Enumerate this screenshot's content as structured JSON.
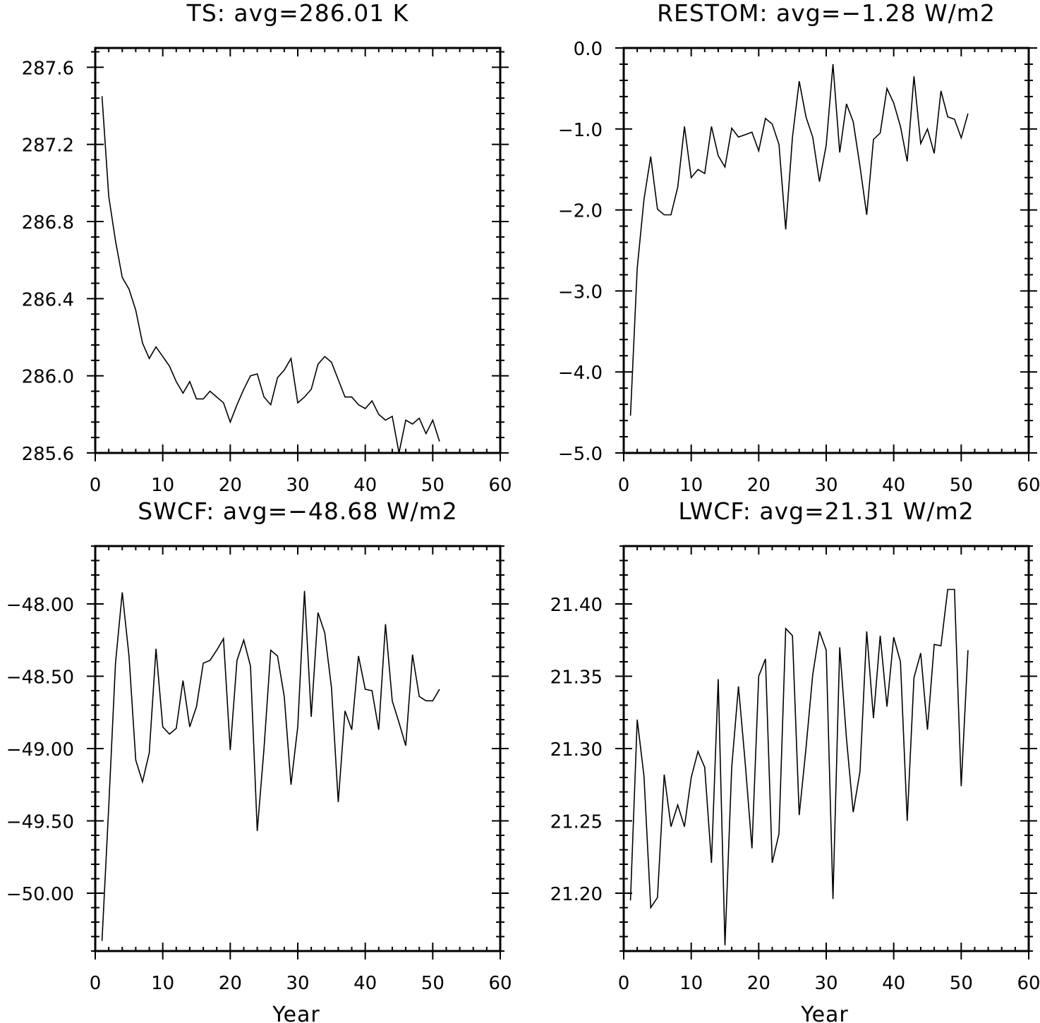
{
  "chart_data": [
    {
      "type": "line",
      "title": "TS: avg=286.01 K",
      "xlabel": "",
      "ylabel": "",
      "xlim": [
        0,
        60
      ],
      "ylim": [
        285.6,
        287.7
      ],
      "xticks": [
        0,
        10,
        20,
        30,
        40,
        50,
        60
      ],
      "xtick_labels": [
        "0",
        "10",
        "20",
        "30",
        "40",
        "50",
        "60"
      ],
      "yticks": [
        285.6,
        286.0,
        286.4,
        286.8,
        287.2,
        287.6
      ],
      "ytick_labels": [
        "285.6",
        "286.0",
        "286.4",
        "286.8",
        "287.2",
        "287.6"
      ],
      "x": [
        1,
        2,
        3,
        4,
        5,
        6,
        7,
        8,
        9,
        10,
        11,
        12,
        13,
        14,
        15,
        16,
        17,
        18,
        19,
        20,
        21,
        22,
        23,
        24,
        25,
        26,
        27,
        28,
        29,
        30,
        31,
        32,
        33,
        34,
        35,
        36,
        37,
        38,
        39,
        40,
        41,
        42,
        43,
        44,
        45,
        46,
        47,
        48,
        49,
        50,
        51
      ],
      "series": [
        {
          "values": [
            287.45,
            286.93,
            286.7,
            286.51,
            286.45,
            286.34,
            286.17,
            286.09,
            286.15,
            286.1,
            286.05,
            285.97,
            285.91,
            285.97,
            285.88,
            285.88,
            285.92,
            285.89,
            285.86,
            285.76,
            285.85,
            285.93,
            286.0,
            286.01,
            285.89,
            285.85,
            285.99,
            286.03,
            286.09,
            285.86,
            285.89,
            285.93,
            286.06,
            286.1,
            286.07,
            285.98,
            285.89,
            285.89,
            285.85,
            285.83,
            285.87,
            285.8,
            285.77,
            285.79,
            285.6,
            285.77,
            285.75,
            285.78,
            285.7,
            285.77,
            285.66
          ]
        }
      ]
    },
    {
      "type": "line",
      "title": "RESTOM: avg=−1.28 W/m2",
      "xlabel": "",
      "ylabel": "",
      "xlim": [
        0,
        60
      ],
      "ylim": [
        -5.0,
        0.0
      ],
      "xticks": [
        0,
        10,
        20,
        30,
        40,
        50,
        60
      ],
      "xtick_labels": [
        "0",
        "10",
        "20",
        "30",
        "40",
        "50",
        "60"
      ],
      "yticks": [
        -5.0,
        -4.0,
        -3.0,
        -2.0,
        -1.0,
        0.0
      ],
      "ytick_labels": [
        "−5.0",
        "−4.0",
        "−3.0",
        "−2.0",
        "−1.0",
        "0.0"
      ],
      "x": [
        1,
        2,
        3,
        4,
        5,
        6,
        7,
        8,
        9,
        10,
        11,
        12,
        13,
        14,
        15,
        16,
        17,
        18,
        19,
        20,
        21,
        22,
        23,
        24,
        25,
        26,
        27,
        28,
        29,
        30,
        31,
        32,
        33,
        34,
        35,
        36,
        37,
        38,
        39,
        40,
        41,
        42,
        43,
        44,
        45,
        46,
        47,
        48,
        49,
        50,
        51
      ],
      "series": [
        {
          "values": [
            -4.54,
            -2.72,
            -1.87,
            -1.34,
            -1.99,
            -2.06,
            -2.06,
            -1.72,
            -0.97,
            -1.6,
            -1.5,
            -1.55,
            -0.97,
            -1.33,
            -1.47,
            -0.99,
            -1.1,
            -1.07,
            -1.04,
            -1.27,
            -0.87,
            -0.94,
            -1.19,
            -2.24,
            -1.1,
            -0.41,
            -0.85,
            -1.1,
            -1.65,
            -1.2,
            -0.2,
            -1.29,
            -0.69,
            -0.91,
            -1.46,
            -2.06,
            -1.13,
            -1.05,
            -0.5,
            -0.68,
            -0.97,
            -1.4,
            -0.35,
            -1.18,
            -1.0,
            -1.3,
            -0.53,
            -0.85,
            -0.88,
            -1.11,
            -0.81
          ]
        }
      ]
    },
    {
      "type": "line",
      "title": "SWCF: avg=−48.68 W/m2",
      "xlabel": "Year",
      "ylabel": "",
      "xlim": [
        0,
        60
      ],
      "ylim": [
        -50.4,
        -47.6
      ],
      "xticks": [
        0,
        10,
        20,
        30,
        40,
        50,
        60
      ],
      "xtick_labels": [
        "0",
        "10",
        "20",
        "30",
        "40",
        "50",
        "60"
      ],
      "yticks": [
        -50.0,
        -49.5,
        -49.0,
        -48.5,
        -48.0
      ],
      "ytick_labels": [
        "−50.00",
        "−49.50",
        "−49.00",
        "−48.50",
        "−48.00"
      ],
      "x": [
        1,
        2,
        3,
        4,
        5,
        6,
        7,
        8,
        9,
        10,
        11,
        12,
        13,
        14,
        15,
        16,
        17,
        18,
        19,
        20,
        21,
        22,
        23,
        24,
        25,
        26,
        27,
        28,
        29,
        30,
        31,
        32,
        33,
        34,
        35,
        36,
        37,
        38,
        39,
        40,
        41,
        42,
        43,
        44,
        45,
        46,
        47,
        48,
        49,
        50,
        51
      ],
      "series": [
        {
          "values": [
            -50.33,
            -49.4,
            -48.41,
            -47.92,
            -48.36,
            -49.08,
            -49.23,
            -49.03,
            -48.31,
            -48.85,
            -48.9,
            -48.86,
            -48.53,
            -48.85,
            -48.71,
            -48.41,
            -48.39,
            -48.32,
            -48.24,
            -49.01,
            -48.39,
            -48.25,
            -48.43,
            -49.57,
            -49.0,
            -48.32,
            -48.36,
            -48.64,
            -49.25,
            -48.85,
            -47.91,
            -48.78,
            -48.06,
            -48.2,
            -48.58,
            -49.37,
            -48.74,
            -48.87,
            -48.36,
            -48.59,
            -48.6,
            -48.87,
            -48.14,
            -48.67,
            -48.82,
            -48.98,
            -48.35,
            -48.64,
            -48.67,
            -48.67,
            -48.59
          ]
        }
      ]
    },
    {
      "type": "line",
      "title": "LWCF: avg=21.31 W/m2",
      "xlabel": "Year",
      "ylabel": "",
      "xlim": [
        0,
        60
      ],
      "ylim": [
        21.16,
        21.44
      ],
      "xticks": [
        0,
        10,
        20,
        30,
        40,
        50,
        60
      ],
      "xtick_labels": [
        "0",
        "10",
        "20",
        "30",
        "40",
        "50",
        "60"
      ],
      "yticks": [
        21.2,
        21.25,
        21.3,
        21.35,
        21.4
      ],
      "ytick_labels": [
        "21.20",
        "21.25",
        "21.30",
        "21.35",
        "21.40"
      ],
      "x": [
        1,
        2,
        3,
        4,
        5,
        6,
        7,
        8,
        9,
        10,
        11,
        12,
        13,
        14,
        15,
        16,
        17,
        18,
        19,
        20,
        21,
        22,
        23,
        24,
        25,
        26,
        27,
        28,
        29,
        30,
        31,
        32,
        33,
        34,
        35,
        36,
        37,
        38,
        39,
        40,
        41,
        42,
        43,
        44,
        45,
        46,
        47,
        48,
        49,
        50,
        51
      ],
      "series": [
        {
          "values": [
            21.195,
            21.32,
            21.281,
            21.19,
            21.197,
            21.282,
            21.246,
            21.261,
            21.246,
            21.28,
            21.298,
            21.287,
            21.221,
            21.348,
            21.164,
            21.287,
            21.343,
            21.29,
            21.231,
            21.35,
            21.362,
            21.221,
            21.241,
            21.383,
            21.378,
            21.254,
            21.3,
            21.351,
            21.381,
            21.368,
            21.196,
            21.37,
            21.307,
            21.256,
            21.284,
            21.381,
            21.321,
            21.378,
            21.329,
            21.377,
            21.36,
            21.25,
            21.349,
            21.366,
            21.313,
            21.372,
            21.371,
            21.41,
            21.41,
            21.274,
            21.368
          ]
        }
      ]
    }
  ]
}
